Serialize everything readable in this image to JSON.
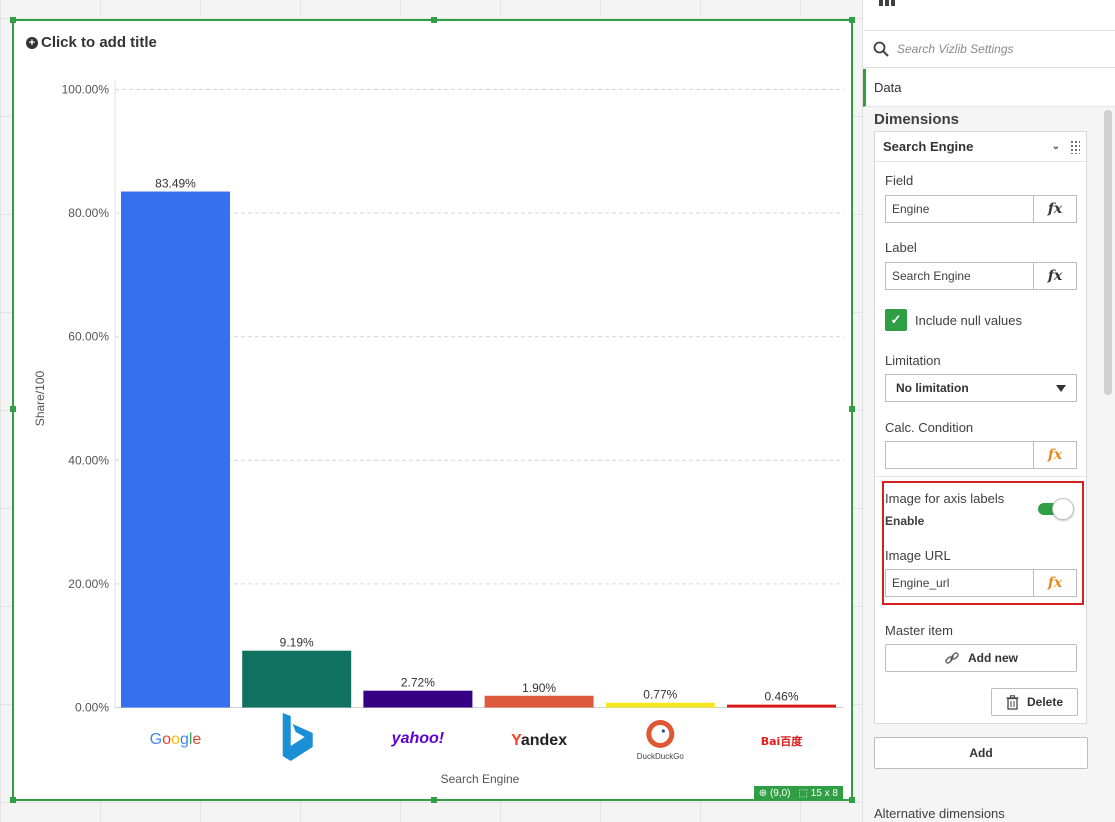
{
  "chart": {
    "title_placeholder": "Click to add title",
    "status": {
      "position": "(9,0)",
      "size": "15 x 8"
    }
  },
  "chart_data": {
    "type": "bar",
    "title": "",
    "xlabel": "Search Engine",
    "ylabel": "Share/100",
    "categories": [
      "Google",
      "Bing",
      "Yahoo!",
      "Yandex",
      "DuckDuckGo",
      "Baidu"
    ],
    "values": [
      83.49,
      9.19,
      2.72,
      1.9,
      0.77,
      0.46
    ],
    "value_labels": [
      "83.49%",
      "9.19%",
      "2.72%",
      "1.90%",
      "0.77%",
      "0.46%"
    ],
    "bar_colors": [
      "#3570f0",
      "#117160",
      "#360085",
      "#de5a3c",
      "#f7e71f",
      "#e01515"
    ],
    "yticks": [
      "0.00%",
      "20.00%",
      "40.00%",
      "60.00%",
      "80.00%",
      "100.00%"
    ],
    "ylim": [
      0,
      100
    ],
    "grid": true,
    "axis_label_images": [
      {
        "text": "Google",
        "icon": "google-logo"
      },
      {
        "text": "",
        "icon": "bing-logo"
      },
      {
        "text": "yahoo!",
        "icon": "yahoo-logo"
      },
      {
        "text": "Yandex",
        "icon": "yandex-logo"
      },
      {
        "text": "DuckDuckGo",
        "icon": "duckduckgo-logo"
      },
      {
        "text": "Bai百度",
        "icon": "baidu-logo"
      }
    ]
  },
  "panel": {
    "search_placeholder": "Search Vizlib Settings",
    "data_tab": "Data",
    "dimensions_title": "Dimensions",
    "dimension": {
      "name": "Search Engine",
      "field_label": "Field",
      "field_value": "Engine",
      "label_label": "Label",
      "label_value": "Search Engine",
      "include_null_label": "Include null values",
      "include_null_checked": true,
      "limitation_label": "Limitation",
      "limitation_value": "No limitation",
      "calc_condition_label": "Calc. Condition",
      "calc_condition_value": "",
      "image_axis_label": "Image for axis labels",
      "image_axis_state": "Enable",
      "image_axis_enabled": true,
      "image_url_label": "Image URL",
      "image_url_value": "Engine_url",
      "master_item_label": "Master item",
      "add_new_label": "Add new",
      "delete_label": "Delete",
      "fx": "fx"
    },
    "add_label": "Add",
    "alternative_dimensions": "Alternative dimensions"
  }
}
